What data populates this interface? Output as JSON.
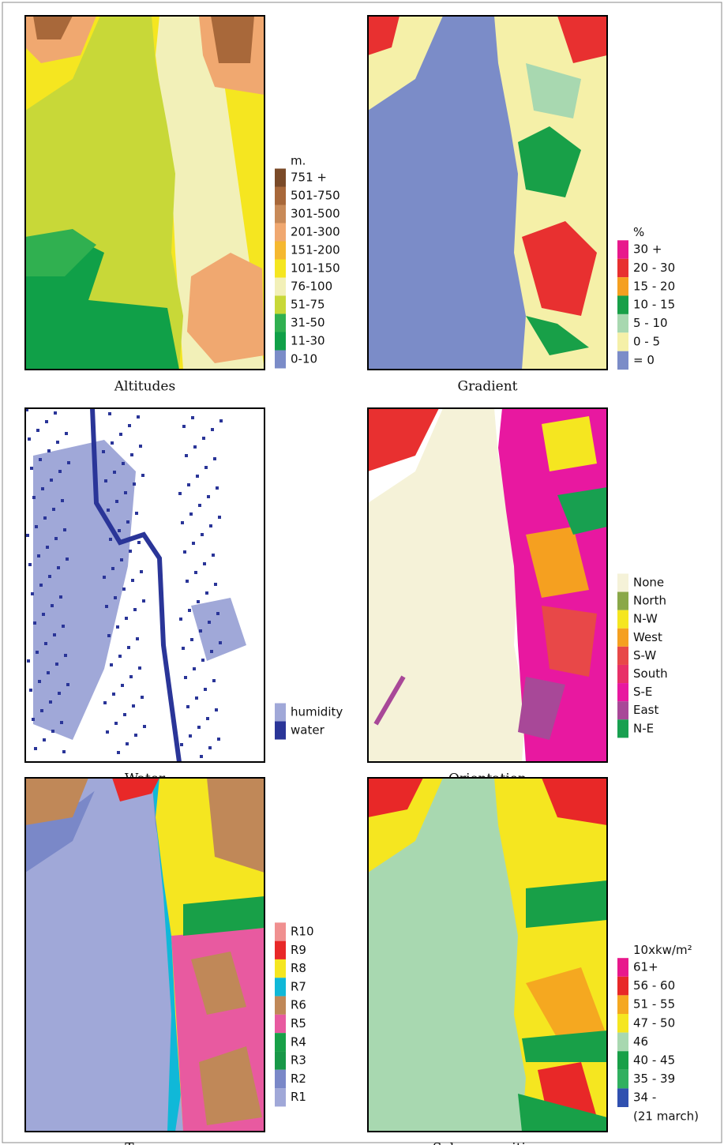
{
  "panels": [
    {
      "caption": "Altitudes",
      "unit": "m.",
      "items": [
        {
          "label": "751 +",
          "color": "#7a4a28"
        },
        {
          "label": "501-750",
          "color": "#a8683a"
        },
        {
          "label": "301-500",
          "color": "#c88a58"
        },
        {
          "label": "201-300",
          "color": "#f0a870"
        },
        {
          "label": "151-200",
          "color": "#f5b830"
        },
        {
          "label": "101-150",
          "color": "#f5e620"
        },
        {
          "label": "76-100",
          "color": "#f2f0b8"
        },
        {
          "label": "51-75",
          "color": "#c8d838"
        },
        {
          "label": "31-50",
          "color": "#30b050"
        },
        {
          "label": "11-30",
          "color": "#10a048"
        },
        {
          "label": "0-10",
          "color": "#7b8cc8"
        }
      ]
    },
    {
      "caption": "Gradient",
      "unit": "%",
      "items": [
        {
          "label": "30 +",
          "color": "#e8188c"
        },
        {
          "label": "20 - 30",
          "color": "#e83030"
        },
        {
          "label": "15 - 20",
          "color": "#f5a020"
        },
        {
          "label": "10 - 15",
          "color": "#18a048"
        },
        {
          "label": "5 - 10",
          "color": "#a8d8b0"
        },
        {
          "label": "0 - 5",
          "color": "#f5f0a8"
        },
        {
          "label": "= 0",
          "color": "#7b8cc8"
        }
      ]
    },
    {
      "caption": "Water",
      "items": [
        {
          "label": "humidity",
          "color": "#a0a8d8"
        },
        {
          "label": "water",
          "color": "#2a3598"
        }
      ]
    },
    {
      "caption": "Orientation",
      "items": [
        {
          "label": "None",
          "color": "#f5f2d8"
        },
        {
          "label": "North",
          "color": "#8aa848"
        },
        {
          "label": "N-W",
          "color": "#f5e620"
        },
        {
          "label": "West",
          "color": "#f5a020"
        },
        {
          "label": "S-W",
          "color": "#e84848"
        },
        {
          "label": "South",
          "color": "#e83068"
        },
        {
          "label": "S-E",
          "color": "#e818a0"
        },
        {
          "label": "East",
          "color": "#a84898"
        },
        {
          "label": "N-E",
          "color": "#18a050"
        }
      ]
    },
    {
      "caption": "Types",
      "items": [
        {
          "label": "R10",
          "color": "#f09090"
        },
        {
          "label": "R9",
          "color": "#e82828"
        },
        {
          "label": "R8",
          "color": "#f5e620"
        },
        {
          "label": "R7",
          "color": "#10b8d8"
        },
        {
          "label": "R6",
          "color": "#c08858"
        },
        {
          "label": "R5",
          "color": "#e85aa0"
        },
        {
          "label": "R4",
          "color": "#18a048"
        },
        {
          "label": "R3",
          "color": "#189848"
        },
        {
          "label": "R2",
          "color": "#7a88c8"
        },
        {
          "label": "R1",
          "color": "#a0a8d8"
        }
      ]
    },
    {
      "caption": "Solar exposition",
      "unit": "10xkw/m²",
      "items": [
        {
          "label": "61+",
          "color": "#e8188c"
        },
        {
          "label": "56 - 60",
          "color": "#e82828"
        },
        {
          "label": "51 - 55",
          "color": "#f5a820"
        },
        {
          "label": "47 - 50",
          "color": "#f5e620"
        },
        {
          "label": "46",
          "color": "#a8d8b0"
        },
        {
          "label": "40 - 45",
          "color": "#18a048"
        },
        {
          "label": "35 - 39",
          "color": "#30b060"
        },
        {
          "label": "34 -",
          "color": "#3050b0"
        }
      ],
      "note": "(21 march)"
    }
  ]
}
